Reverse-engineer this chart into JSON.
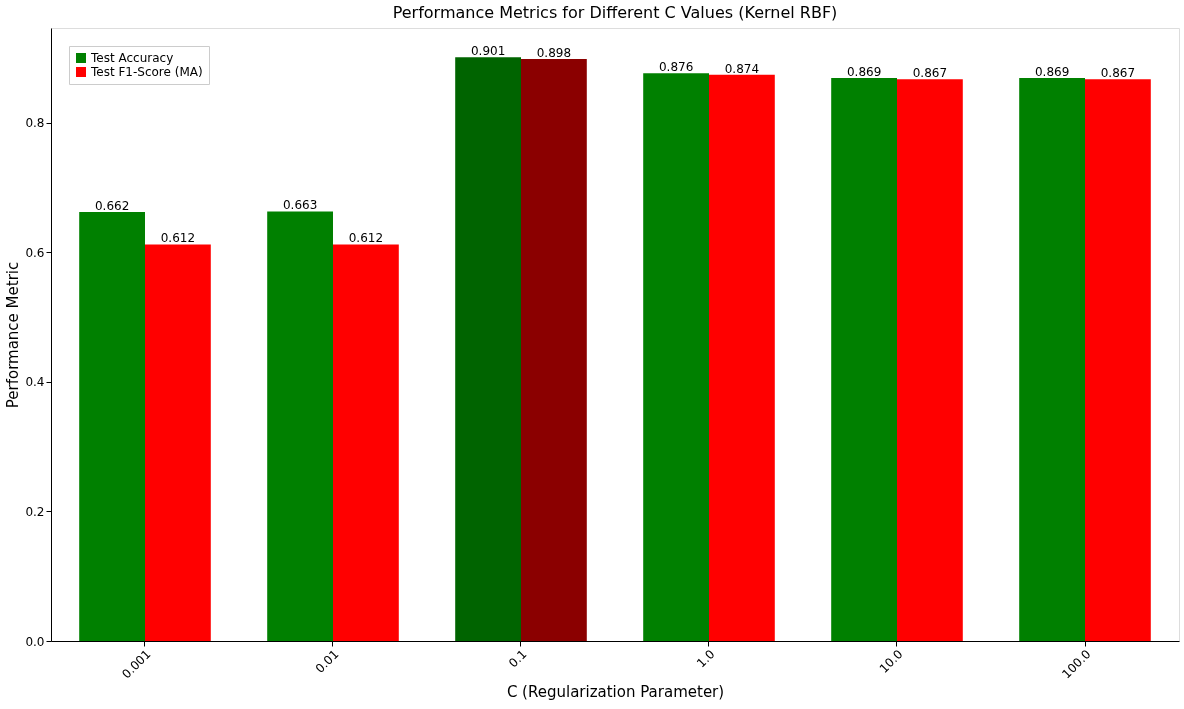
{
  "chart_data": {
    "type": "bar",
    "title": "Performance Metrics for Different C Values (Kernel RBF)",
    "xlabel": "C (Regularization Parameter)",
    "ylabel": "Performance Metric",
    "categories": [
      "0.001",
      "0.01",
      "0.1",
      "1.0",
      "10.0",
      "100.0"
    ],
    "series": [
      {
        "name": "Test Accuracy",
        "color": "#008000",
        "colors": [
          "#008000",
          "#008000",
          "#006400",
          "#008000",
          "#008000",
          "#008000"
        ],
        "values": [
          0.662,
          0.663,
          0.901,
          0.876,
          0.869,
          0.869
        ]
      },
      {
        "name": "Test F1-Score (MA)",
        "color": "#ff0000",
        "colors": [
          "#ff0000",
          "#ff0000",
          "#8b0000",
          "#ff0000",
          "#ff0000",
          "#ff0000"
        ],
        "values": [
          0.612,
          0.612,
          0.898,
          0.874,
          0.867,
          0.867
        ]
      }
    ],
    "ylim": [
      0,
      0.946
    ],
    "yticks": [
      {
        "value": 0,
        "label": "0.0"
      },
      0.2,
      0.4,
      0.6,
      0.8
    ],
    "data_labels": true,
    "legend": "top left",
    "grid": false
  }
}
